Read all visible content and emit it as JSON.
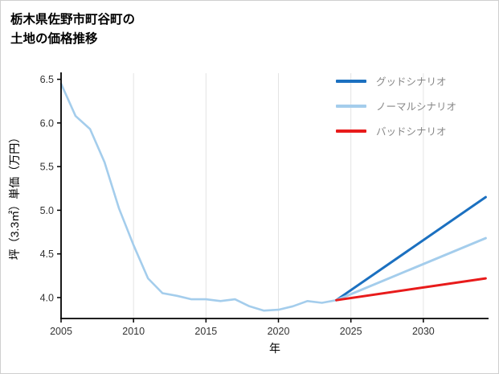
{
  "title": {
    "line1": "栃木県佐野市町谷町の",
    "line2": "土地の価格推移"
  },
  "chart_data": {
    "type": "line",
    "title": "栃木県佐野市町谷町の土地の価格推移",
    "xlabel": "年",
    "ylabel": "坪（3.3㎡）単価（万円）",
    "xlim": [
      2005,
      2034.5
    ],
    "ylim": [
      3.76,
      6.57
    ],
    "x_ticks": [
      2005,
      2010,
      2015,
      2020,
      2025,
      2030
    ],
    "y_ticks": [
      4.0,
      4.5,
      5.0,
      5.5,
      6.0,
      6.5
    ],
    "grid": "vertical",
    "legend_position": "upper right",
    "colors": {
      "grid": "#e4e4e4",
      "axis": "#000000",
      "good": "#1b70c0",
      "normal": "#a4cdec",
      "bad": "#e81b1b"
    },
    "series": [
      {
        "id": "history",
        "color": "#a4cdec",
        "width": 2.6,
        "x": [
          2005,
          2006,
          2007,
          2008,
          2009,
          2010,
          2011,
          2012,
          2013,
          2014,
          2015,
          2016,
          2017,
          2018,
          2019,
          2020,
          2021,
          2022,
          2023,
          2024
        ],
        "values": [
          6.45,
          6.08,
          5.93,
          5.55,
          5.02,
          4.6,
          4.22,
          4.05,
          4.02,
          3.98,
          3.98,
          3.96,
          3.98,
          3.9,
          3.85,
          3.86,
          3.9,
          3.96,
          3.94,
          3.97
        ]
      },
      {
        "id": "good-scenario",
        "label": "グッドシナリオ",
        "color": "#1b70c0",
        "width": 3,
        "x": [
          2024,
          2034.3
        ],
        "values": [
          3.97,
          5.15
        ]
      },
      {
        "id": "normal-scenario",
        "label": "ノーマルシナリオ",
        "color": "#a4cdec",
        "width": 3,
        "x": [
          2024,
          2034.3
        ],
        "values": [
          3.97,
          4.68
        ]
      },
      {
        "id": "bad-scenario",
        "label": "バッドシナリオ",
        "color": "#e81b1b",
        "width": 3,
        "x": [
          2024,
          2034.3
        ],
        "values": [
          3.97,
          4.22
        ]
      }
    ],
    "legend": [
      {
        "label": "グッドシナリオ",
        "color": "#1b70c0"
      },
      {
        "label": "ノーマルシナリオ",
        "color": "#a4cdec"
      },
      {
        "label": "バッドシナリオ",
        "color": "#e81b1b"
      }
    ]
  }
}
